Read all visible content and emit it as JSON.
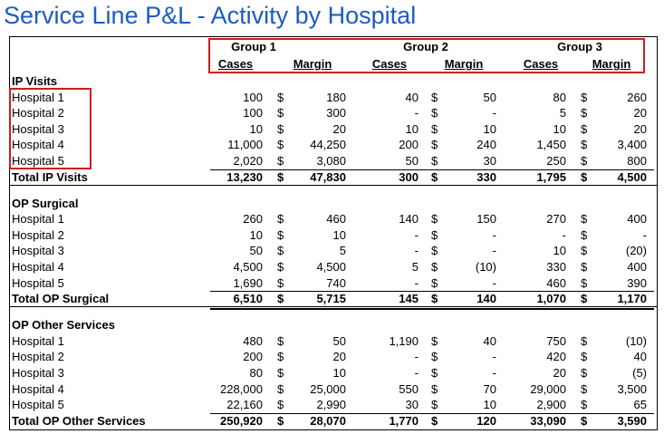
{
  "header": {
    "title": "Service Line P&L  - Activity by Hospital"
  },
  "table": {
    "groups": [
      "Group 1",
      "Group 2",
      "Group 3"
    ],
    "subheaders": [
      "Cases",
      "Margin",
      "Cases",
      "Margin",
      "Cases",
      "Margin"
    ],
    "sections": [
      {
        "title": "IP Visits",
        "rows": [
          {
            "label": "Hospital 1",
            "cells": [
              "100",
              "$",
              "180",
              "40",
              "$",
              "50",
              "80",
              "$",
              "260"
            ]
          },
          {
            "label": "Hospital 2",
            "cells": [
              "100",
              "$",
              "300",
              "-",
              "$",
              "-",
              "5",
              "$",
              "20"
            ]
          },
          {
            "label": "Hospital 3",
            "cells": [
              "10",
              "$",
              "20",
              "10",
              "$",
              "10",
              "10",
              "$",
              "20"
            ]
          },
          {
            "label": "Hospital 4",
            "cells": [
              "11,000",
              "$",
              "44,250",
              "200",
              "$",
              "240",
              "1,450",
              "$",
              "3,400"
            ]
          },
          {
            "label": "Hospital 5",
            "cells": [
              "2,020",
              "$",
              "3,080",
              "50",
              "$",
              "30",
              "250",
              "$",
              "800"
            ]
          }
        ],
        "total": {
          "label": "Total IP Visits",
          "cells": [
            "13,230",
            "$",
            "47,830",
            "300",
            "$",
            "330",
            "1,795",
            "$",
            "4,500"
          ]
        }
      },
      {
        "title": "OP Surgical",
        "rows": [
          {
            "label": "Hospital 1",
            "cells": [
              "260",
              "$",
              "460",
              "140",
              "$",
              "150",
              "270",
              "$",
              "400"
            ]
          },
          {
            "label": "Hospital 2",
            "cells": [
              "10",
              "$",
              "10",
              "-",
              "$",
              "-",
              "-",
              "$",
              "-"
            ]
          },
          {
            "label": "Hospital 3",
            "cells": [
              "50",
              "$",
              "5",
              "-",
              "$",
              "-",
              "10",
              "$",
              "(20)"
            ]
          },
          {
            "label": "Hospital 4",
            "cells": [
              "4,500",
              "$",
              "4,500",
              "5",
              "$",
              "(10)",
              "330",
              "$",
              "400"
            ]
          },
          {
            "label": "Hospital 5",
            "cells": [
              "1,690",
              "$",
              "740",
              "-",
              "$",
              "-",
              "460",
              "$",
              "390"
            ]
          }
        ],
        "total": {
          "label": "Total OP Surgical",
          "cells": [
            "6,510",
            "$",
            "5,715",
            "145",
            "$",
            "140",
            "1,070",
            "$",
            "1,170"
          ]
        }
      },
      {
        "title": "OP Other Services",
        "rows": [
          {
            "label": "Hospital 1",
            "cells": [
              "480",
              "$",
              "50",
              "1,190",
              "$",
              "40",
              "750",
              "$",
              "(10)"
            ]
          },
          {
            "label": "Hospital 2",
            "cells": [
              "200",
              "$",
              "20",
              "-",
              "$",
              "-",
              "420",
              "$",
              "40"
            ]
          },
          {
            "label": "Hospital 3",
            "cells": [
              "80",
              "$",
              "10",
              "-",
              "$",
              "-",
              "20",
              "$",
              "(5)"
            ]
          },
          {
            "label": "Hospital 4",
            "cells": [
              "228,000",
              "$",
              "25,000",
              "550",
              "$",
              "70",
              "29,000",
              "$",
              "3,500"
            ]
          },
          {
            "label": "Hospital 5",
            "cells": [
              "22,160",
              "$",
              "2,990",
              "30",
              "$",
              "10",
              "2,900",
              "$",
              "65"
            ]
          }
        ],
        "total": {
          "label": "Total OP Other Services",
          "cells": [
            "250,920",
            "$",
            "28,070",
            "1,770",
            "$",
            "120",
            "33,090",
            "$",
            "3,590"
          ]
        }
      }
    ]
  }
}
